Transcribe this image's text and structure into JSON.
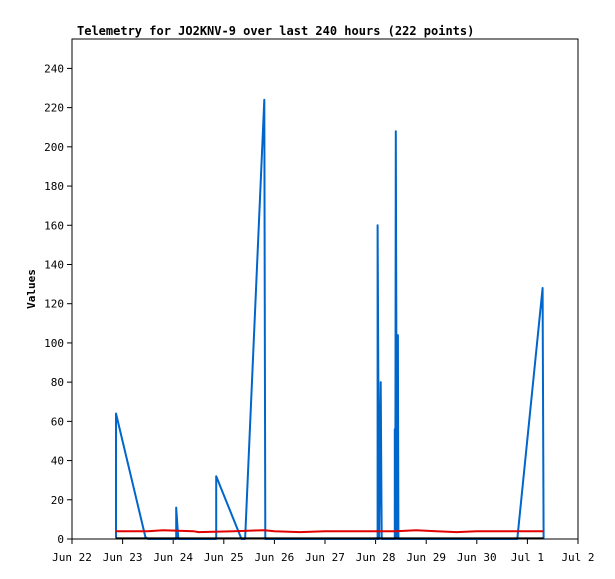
{
  "chart_data": {
    "type": "line",
    "title": "Telemetry for JO2KNV-9 over last 240 hours (222 points)",
    "xlabel": "",
    "ylabel": "Values",
    "x_ticks": [
      "Jun 22",
      "Jun 23",
      "Jun 24",
      "Jun 25",
      "Jun 26",
      "Jun 27",
      "Jun 28",
      "Jun 29",
      "Jun 30",
      "Jul 1",
      "Jul 2"
    ],
    "y_ticks": [
      0,
      20,
      40,
      60,
      80,
      100,
      120,
      140,
      160,
      180,
      200,
      220,
      240
    ],
    "xlim": [
      0,
      10
    ],
    "ylim": [
      0,
      255
    ],
    "grid": false,
    "series": [
      {
        "color": "#0066cc",
        "points": [
          [
            0.87,
            0
          ],
          [
            0.87,
            64
          ],
          [
            1.45,
            1
          ],
          [
            1.5,
            0
          ],
          [
            2.0,
            0
          ],
          [
            2.06,
            0
          ],
          [
            2.06,
            16
          ],
          [
            2.1,
            0
          ],
          [
            2.85,
            0
          ],
          [
            2.85,
            32
          ],
          [
            3.35,
            0
          ],
          [
            3.42,
            0
          ],
          [
            3.8,
            224
          ],
          [
            3.82,
            0
          ],
          [
            5.5,
            0
          ],
          [
            6.0,
            0
          ],
          [
            6.04,
            0
          ],
          [
            6.04,
            160
          ],
          [
            6.07,
            0
          ],
          [
            6.1,
            80
          ],
          [
            6.12,
            0
          ],
          [
            6.3,
            0
          ],
          [
            6.38,
            0
          ],
          [
            6.38,
            56
          ],
          [
            6.39,
            0
          ],
          [
            6.4,
            208
          ],
          [
            6.42,
            0
          ],
          [
            6.44,
            104
          ],
          [
            6.45,
            0
          ],
          [
            8.7,
            0
          ],
          [
            8.8,
            0
          ],
          [
            9.3,
            128
          ],
          [
            9.32,
            0
          ]
        ]
      },
      {
        "color": "#e00000",
        "points": [
          [
            0.87,
            4
          ],
          [
            1.5,
            4
          ],
          [
            1.8,
            4.5
          ],
          [
            2.4,
            4
          ],
          [
            2.5,
            3.5
          ],
          [
            3.2,
            4
          ],
          [
            3.8,
            4.5
          ],
          [
            4.0,
            4
          ],
          [
            4.5,
            3.5
          ],
          [
            5.0,
            4
          ],
          [
            5.5,
            4
          ],
          [
            6.0,
            4
          ],
          [
            6.4,
            4
          ],
          [
            6.8,
            4.5
          ],
          [
            7.2,
            4
          ],
          [
            7.6,
            3.5
          ],
          [
            8.0,
            4
          ],
          [
            8.5,
            4
          ],
          [
            9.0,
            4
          ],
          [
            9.32,
            4
          ]
        ]
      },
      {
        "color": "#000000",
        "points": [
          [
            0.87,
            0.3
          ],
          [
            9.32,
            0.3
          ]
        ]
      }
    ]
  }
}
